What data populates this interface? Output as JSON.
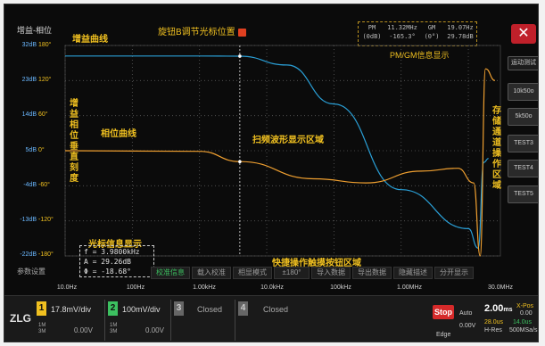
{
  "header": {
    "mode_title": "增益-相位",
    "cursor_hint": "旋钮B调节光标位置",
    "close_label": "✕"
  },
  "pmgm": {
    "pm_label": "PM",
    "pm_unit": "(0dB)",
    "freq1": "11.32MHz",
    "phase1": "-165.3°",
    "gm_label": "GM",
    "gm_unit": "(0°)",
    "freq2": "19.07Hz",
    "gain2": "29.78dB",
    "caption": "PM/GM信息显示"
  },
  "side_buttons": {
    "measure": "运动测试",
    "btn2": "10k50o",
    "btn3": "5k50o",
    "btn4": "TEST3",
    "btn5": "TEST4",
    "btn6": "TEST5"
  },
  "y_axis": {
    "db_ticks": [
      "32dB",
      "23dB",
      "14dB",
      "5dB",
      "-4dB",
      "-13dB",
      "-22dB"
    ],
    "deg_ticks": [
      "180°",
      "120°",
      "60°",
      "0°",
      "-60°",
      "-120°",
      "-180°"
    ]
  },
  "annotations": {
    "gain_curve": "增益曲线",
    "phase_curve": "相位曲线",
    "vertical_scale": "增益相位垂直刻度",
    "sweep_area": "扫频波形显示区域",
    "storage_area": "存储通道操作区域",
    "cursor_info_label": "光标信息显示",
    "quick_ops": "快捷操作触摸按钮区域"
  },
  "cursor_info": {
    "f": "f = 3.9800kHz",
    "a": "A = 29.26dB",
    "phi": "Φ = -18.68°"
  },
  "quick_bar": {
    "param": "参数设置",
    "calib": "校准信息",
    "load_calib": "载入校准",
    "phase_mode": "相显模式",
    "phase_range": "±180°",
    "import": "导入数据",
    "export": "导出数据",
    "hide": "隐藏描述",
    "split": "分开显示"
  },
  "x_axis": {
    "ticks": [
      "10.0Hz",
      "100Hz",
      "1.00kHz",
      "10.0kHz",
      "100kHz",
      "1.00MHz",
      "30.0MHz"
    ]
  },
  "bottom": {
    "logo": "ZLG",
    "ch1": {
      "num": "1",
      "scale": "17.8mV/div",
      "offset": "0.00V",
      "sub": "1M\n3M"
    },
    "ch2": {
      "num": "2",
      "scale": "100mV/div",
      "offset": "0.00V",
      "sub": "1M\n3M"
    },
    "ch3": {
      "num": "3",
      "status": "Closed"
    },
    "ch4": {
      "num": "4",
      "status": "Closed"
    },
    "stop": "Stop",
    "auto": "Auto",
    "trig_level": "0.00V",
    "trig_mode": "Edge",
    "timebase": "2.00",
    "timebase_unit": "ms",
    "sample_a": "28.0us",
    "sample_b": "14.0us",
    "h_res": "H-Res",
    "rate": "500MSa/s",
    "xpos_label": "X-Pos",
    "xpos_val": "0.00"
  },
  "chart_data": {
    "type": "line",
    "x_scale": "log",
    "xlim": [
      "10.0Hz",
      "30.0MHz"
    ],
    "series": [
      {
        "name": "增益曲线",
        "color": "#2a9fd6",
        "points": [
          [
            10,
            29.3
          ],
          [
            1000,
            29.3
          ],
          [
            3980,
            29.26
          ],
          [
            20000,
            27
          ],
          [
            100000,
            17
          ],
          [
            1000000,
            -5
          ],
          [
            10000000,
            -15
          ],
          [
            14000000,
            -20
          ],
          [
            17000000,
            2
          ],
          [
            20000000,
            3
          ]
        ]
      },
      {
        "name": "相位曲线",
        "color": "#f0a030",
        "points": [
          [
            10,
            0
          ],
          [
            1000,
            -1
          ],
          [
            3980,
            -18.68
          ],
          [
            50000,
            -48
          ],
          [
            300000,
            -55
          ],
          [
            2000000,
            -35
          ],
          [
            7000000,
            -30
          ],
          [
            12000000,
            -55
          ],
          [
            15000000,
            -180
          ],
          [
            18000000,
            140
          ],
          [
            25000000,
            120
          ]
        ]
      }
    ],
    "colors": {
      "gain": "#2a9fd6",
      "phase": "#f0a030",
      "cursor": "#e0e0e0",
      "grid": "#5a5a5a"
    }
  }
}
